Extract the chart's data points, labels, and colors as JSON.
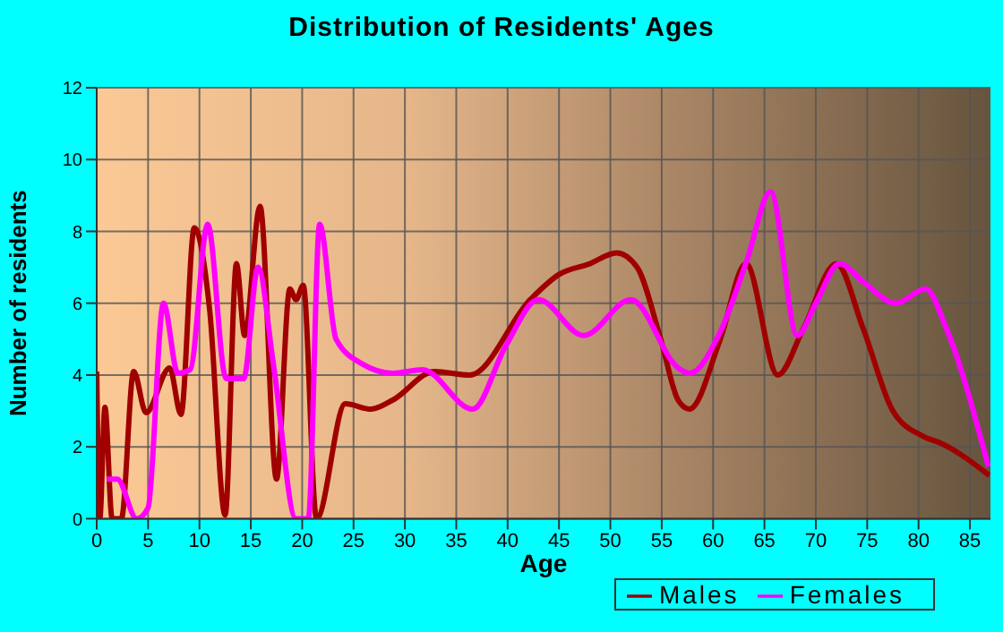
{
  "chart_data": {
    "type": "line",
    "title": "Distribution of Residents' Ages",
    "xlabel": "Age",
    "ylabel": "Number of residents",
    "xlim": [
      0,
      87
    ],
    "xticks": [
      0,
      5,
      10,
      15,
      20,
      25,
      30,
      35,
      40,
      45,
      50,
      55,
      60,
      65,
      70,
      75,
      80,
      85
    ],
    "ylim": [
      0,
      12
    ],
    "yticks": [
      0,
      2,
      4,
      6,
      8,
      10,
      12
    ],
    "grid": true,
    "legend": "bottom right",
    "marker": "none",
    "line_style": "solid",
    "series": [
      {
        "name": "Males",
        "color": "#a00000",
        "x": [
          0,
          0.3,
          0.8,
          1.5,
          2.4,
          3.6,
          4.8,
          7.1,
          8.2,
          9.5,
          11,
          12.5,
          13.6,
          14.4,
          15.9,
          17.5,
          18.8,
          19.4,
          20.1,
          21.4,
          24.2,
          26.7,
          28.8,
          32.9,
          36.3,
          42.2,
          45,
          48,
          50.6,
          52.6,
          54.9,
          56.6,
          57.7,
          60.7,
          63.2,
          66.3,
          68.8,
          72,
          74.6,
          77.5,
          80.4,
          82.2,
          86.9
        ],
        "values": [
          4.1,
          0,
          3.1,
          0,
          0,
          4.1,
          2.95,
          4.2,
          2.9,
          8.1,
          5.8,
          0.1,
          7.1,
          5.1,
          8.7,
          1.1,
          6.4,
          6.1,
          6.5,
          0,
          3.2,
          3.05,
          3.3,
          4.1,
          4,
          6.1,
          6.8,
          7.1,
          7.4,
          7,
          5,
          3.3,
          3.05,
          5,
          7.1,
          4,
          5.3,
          7.1,
          5.3,
          3,
          2.3,
          2.1,
          1.2
        ]
      },
      {
        "name": "Females",
        "color": "#ff00ff",
        "x": [
          1,
          2,
          3.9,
          5,
          6.5,
          7.9,
          9.1,
          10.8,
          12.6,
          14.3,
          15.7,
          17.2,
          19.4,
          20.6,
          21.7,
          23.3,
          25.9,
          28.8,
          31.7,
          36.6,
          39.8,
          43,
          47.4,
          52,
          56.6,
          57.7,
          60.7,
          63.3,
          65.6,
          68.2,
          70,
          72.3,
          74.6,
          77.8,
          80.7,
          82.7,
          86.8
        ],
        "values": [
          1.1,
          1.1,
          0,
          0.3,
          6,
          4.05,
          4.15,
          8.2,
          3.9,
          3.9,
          7,
          4.3,
          0,
          0,
          8.2,
          5,
          4.3,
          4.05,
          4.15,
          3.05,
          4.8,
          6.1,
          5.1,
          6.1,
          4.2,
          4.05,
          5.2,
          7.2,
          9.1,
          5.1,
          6,
          7.1,
          6.6,
          6,
          6.4,
          5.3,
          1.45
        ]
      }
    ]
  }
}
